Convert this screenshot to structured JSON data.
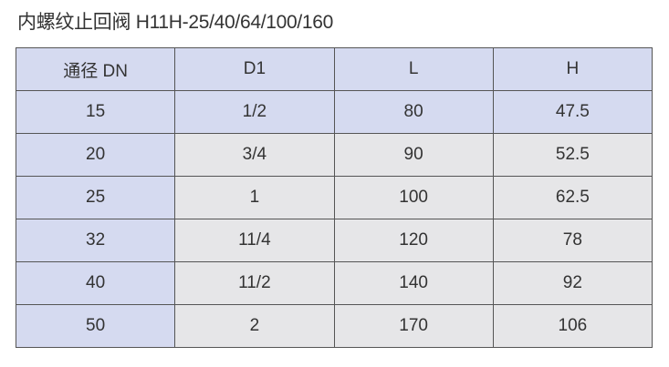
{
  "title": "内螺纹止回阀 H11H-25/40/64/100/160",
  "colors": {
    "header_bg": "#d5daf0",
    "cell_bg": "#e6e6e8",
    "border": "#555555"
  },
  "table": {
    "headers": [
      "通径 DN",
      "D1",
      "L",
      "H"
    ],
    "rows": [
      [
        "15",
        "1/2",
        "80",
        "47.5"
      ],
      [
        "20",
        "3/4",
        "90",
        "52.5"
      ],
      [
        "25",
        "1",
        "100",
        "62.5"
      ],
      [
        "32",
        "11/4",
        "120",
        "78"
      ],
      [
        "40",
        "11/2",
        "140",
        "92"
      ],
      [
        "50",
        "2",
        "170",
        "106"
      ]
    ]
  }
}
